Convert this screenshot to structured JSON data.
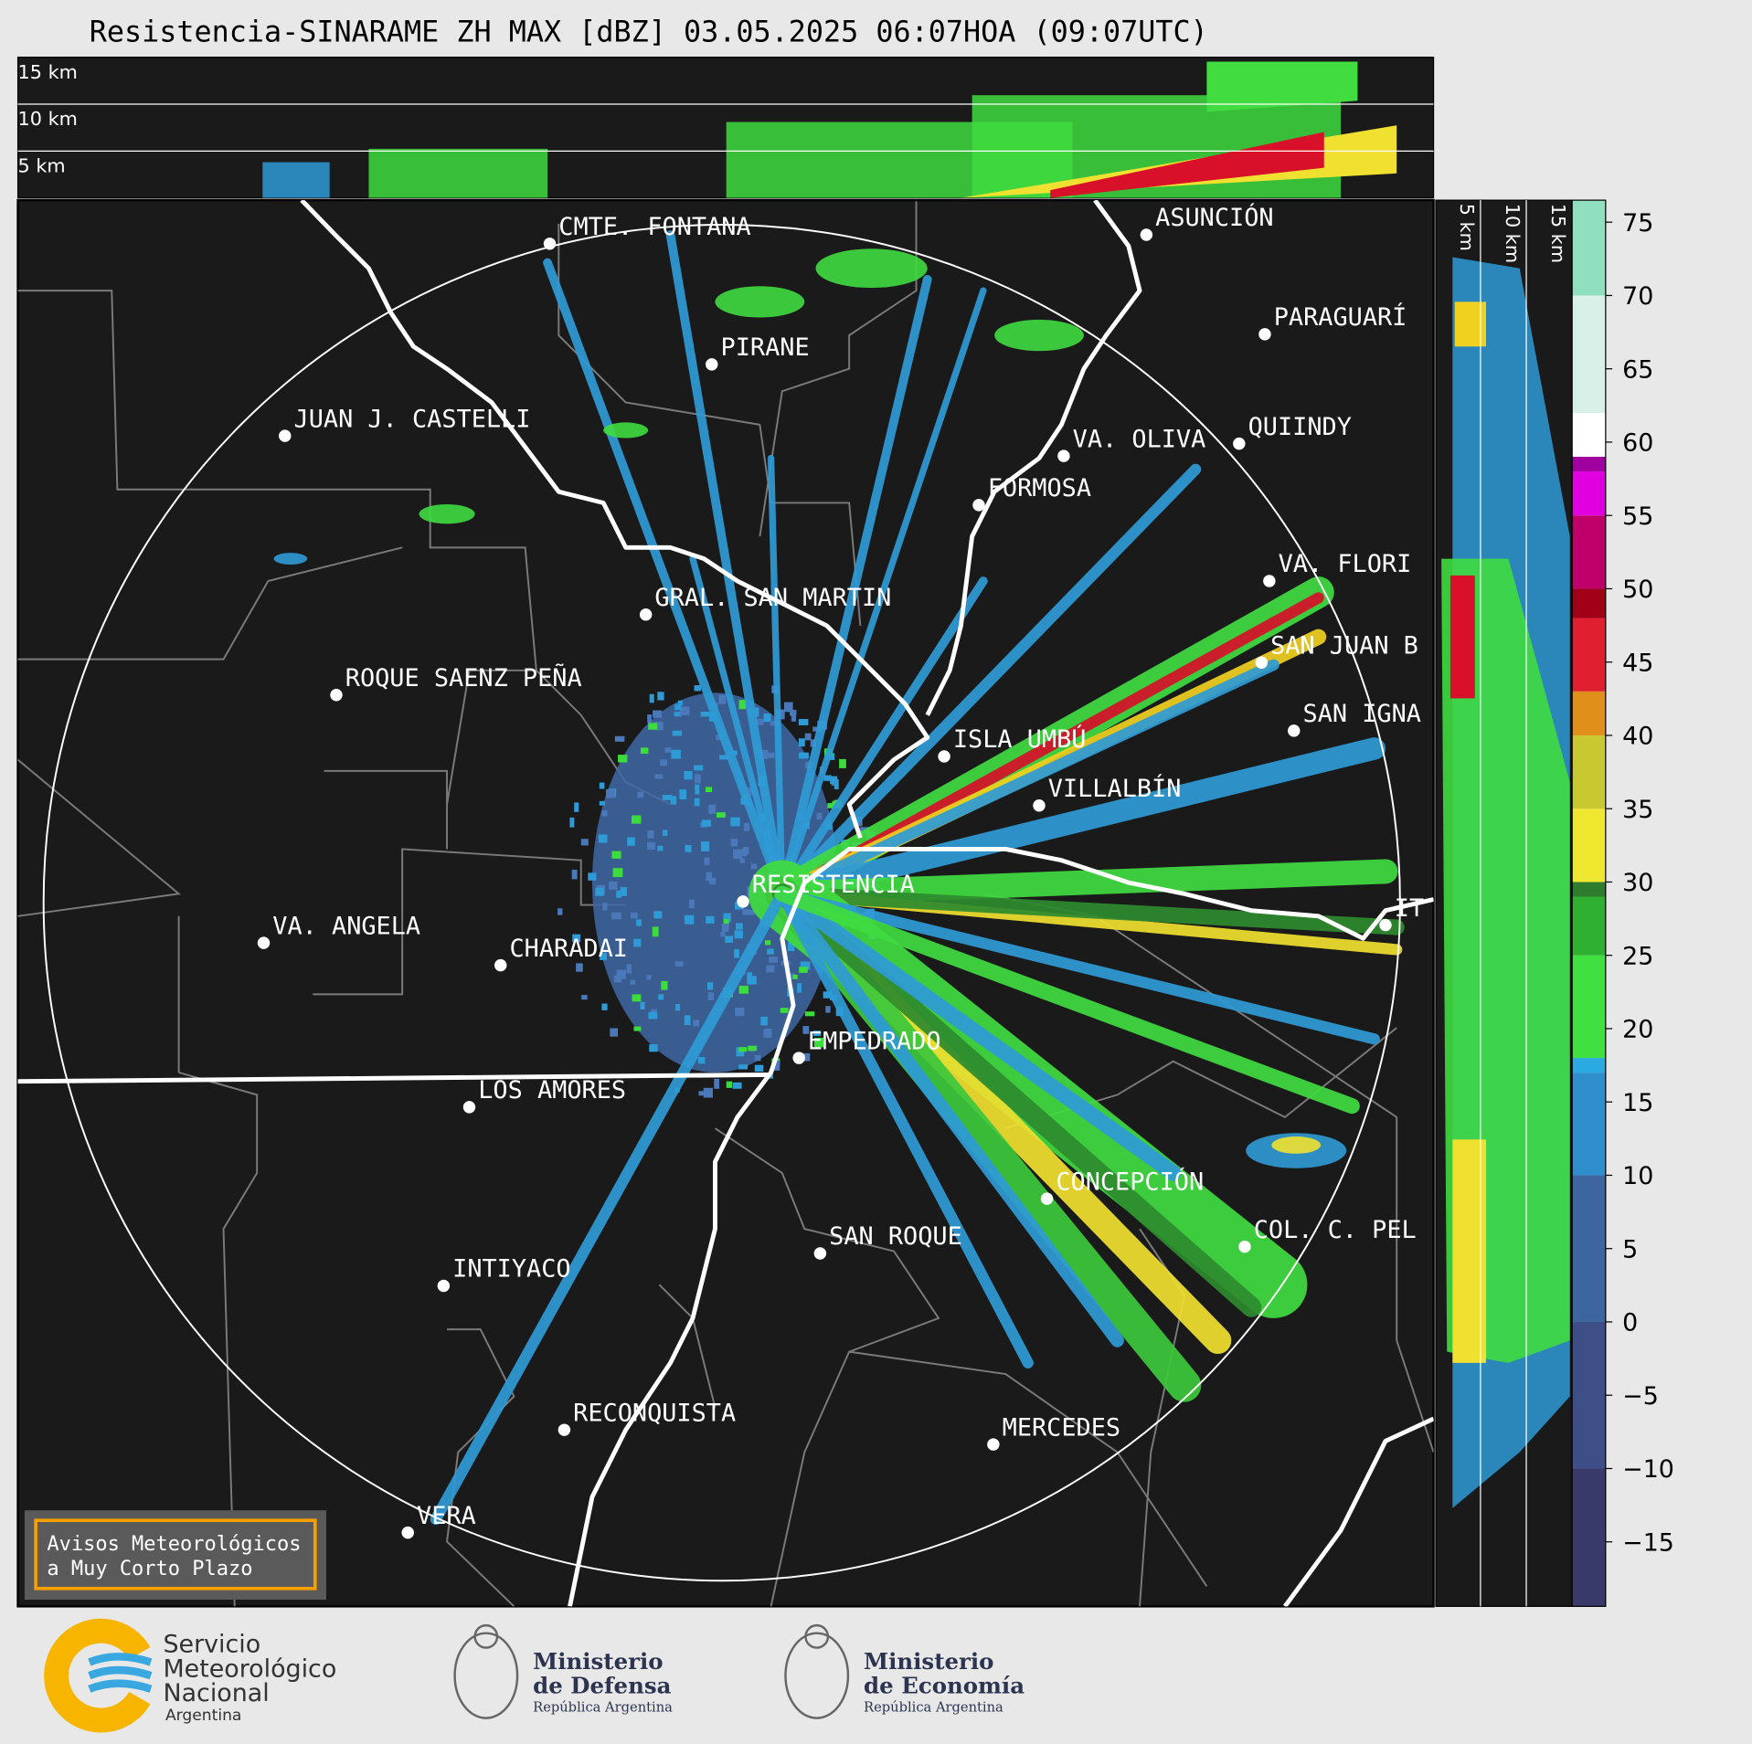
{
  "header": {
    "title": "Resistencia-SINARAME ZH MAX [dBZ] 03.05.2025 06:07HOA (09:07UTC)"
  },
  "top_panel": {
    "height_labels": [
      "15 km",
      "10 km",
      "5 km"
    ]
  },
  "side_panel": {
    "height_labels": [
      "5 km",
      "10 km",
      "15 km"
    ]
  },
  "cities": [
    "CMTE. FONTANA",
    "PIRANE",
    "JUAN J. CASTELLI",
    "VA. OLIVA",
    "QUIINDY",
    "FORMOSA",
    "ASUNCIÓN",
    "PARAGUARÍ",
    "VA. FLORI",
    "GRAL. SAN MARTIN",
    "SAN JUAN B",
    "ROQUE SAENZ PEÑA",
    "SAN IGNA",
    "ISLA UMBÚ",
    "VILLALBÍN",
    "RESISTENCIA",
    "IT",
    "VA. ANGELA",
    "CHARADAI",
    "EMPEDRADO",
    "LOS AMORES",
    "CONCEPCIÓN",
    "COL. C. PEL",
    "SAN ROQUE",
    "INTIYACO",
    "RECONQUISTA",
    "MERCEDES",
    "VERA"
  ],
  "warning_box": {
    "lines": [
      "Avisos Meteorológicos",
      "a Muy Corto Plazo"
    ]
  },
  "colorbar": {
    "ylim": [
      -19.4,
      76.5
    ],
    "ticks": [
      75,
      70,
      65,
      60,
      55,
      50,
      45,
      40,
      35,
      30,
      25,
      20,
      15,
      10,
      5,
      0,
      {
        "value": -5,
        "label": "−5"
      },
      {
        "value": -10,
        "label": "−10"
      },
      {
        "value": -15,
        "label": "−15"
      }
    ]
  },
  "footer": {
    "smn": [
      "Servicio",
      "Meteorológico",
      "Nacional",
      "Argentina"
    ],
    "defensa": [
      "Ministerio",
      "de Defensa",
      "República Argentina"
    ],
    "economia": [
      "Ministerio",
      "de Economía",
      "República Argentina"
    ]
  }
}
